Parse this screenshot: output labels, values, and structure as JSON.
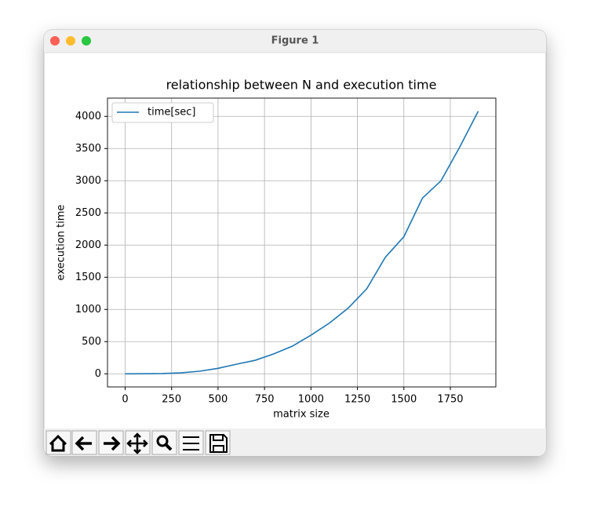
{
  "window": {
    "title": "Figure 1"
  },
  "chart_data": {
    "type": "line",
    "title": "relationship between N and execution time",
    "xlabel": "matrix size",
    "ylabel": "execution time",
    "x": [
      0,
      100,
      200,
      300,
      400,
      500,
      600,
      700,
      800,
      900,
      1000,
      1100,
      1200,
      1300,
      1400,
      1500,
      1600,
      1700,
      1800,
      1900
    ],
    "series": [
      {
        "name": "time[sec]",
        "color": "#1f77b4",
        "values": [
          0,
          1,
          4,
          15,
          40,
          85,
          150,
          210,
          310,
          430,
          600,
          790,
          1020,
          1320,
          1810,
          2130,
          2730,
          3000,
          3520,
          4080
        ]
      }
    ],
    "xlim": [
      -95,
      1995
    ],
    "ylim": [
      -204,
      4284
    ],
    "xticks": [
      0,
      250,
      500,
      750,
      1000,
      1250,
      1500,
      1750
    ],
    "yticks": [
      0,
      500,
      1000,
      1500,
      2000,
      2500,
      3000,
      3500,
      4000
    ],
    "grid": true,
    "legend": "upper left"
  }
}
